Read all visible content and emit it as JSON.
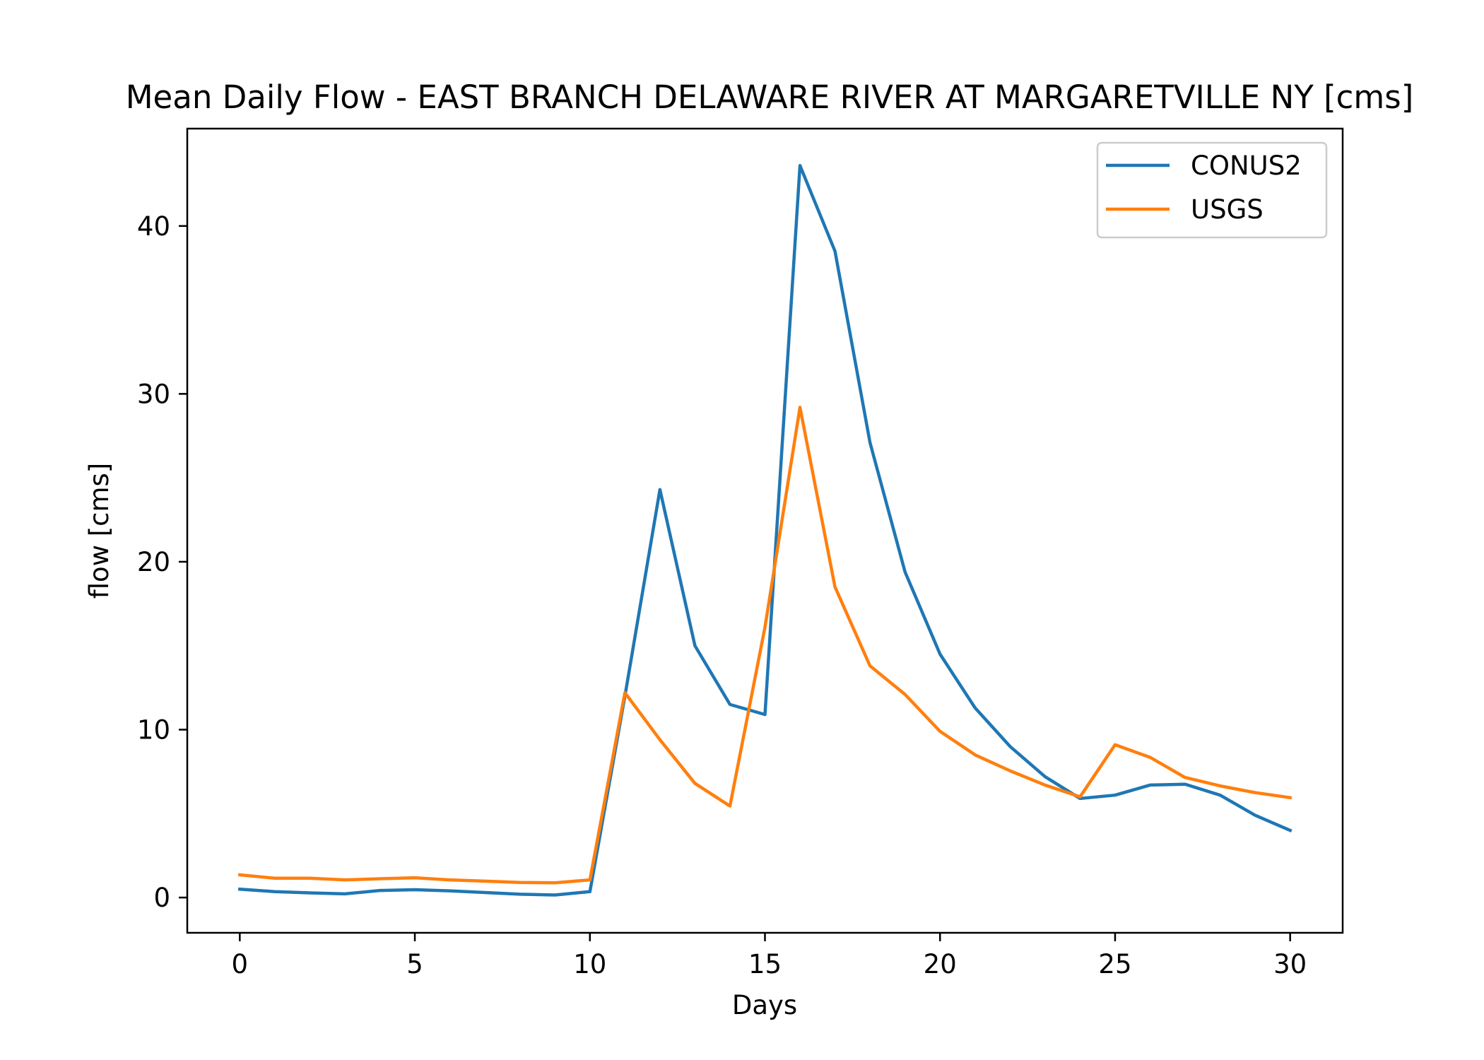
{
  "chart_data": {
    "type": "line",
    "title": "Mean Daily Flow - EAST BRANCH DELAWARE RIVER AT MARGARETVILLE NY [cms]",
    "xlabel": "Days",
    "ylabel": "flow [cms]",
    "xlim": [
      -1.5,
      31.5
    ],
    "ylim": [
      -2.1,
      45.8
    ],
    "xticks": [
      0,
      5,
      10,
      15,
      20,
      25,
      30
    ],
    "yticks": [
      0,
      10,
      20,
      30,
      40
    ],
    "grid": false,
    "legend_position": "top-right",
    "x": [
      0,
      1,
      2,
      3,
      4,
      5,
      6,
      7,
      8,
      9,
      10,
      11,
      12,
      13,
      14,
      15,
      16,
      17,
      18,
      19,
      20,
      21,
      22,
      23,
      24,
      25,
      26,
      27,
      28,
      29,
      30
    ],
    "series": [
      {
        "name": "CONUS2",
        "color": "#1f77b4",
        "values": [
          0.5,
          0.35,
          0.28,
          0.22,
          0.42,
          0.47,
          0.4,
          0.3,
          0.2,
          0.15,
          0.35,
          12.0,
          24.3,
          15.0,
          11.5,
          10.9,
          43.6,
          38.5,
          27.1,
          19.4,
          14.5,
          11.3,
          9.0,
          7.2,
          5.9,
          6.1,
          6.7,
          6.75,
          6.1,
          4.9,
          4.0
        ]
      },
      {
        "name": "USGS",
        "color": "#ff7f0e",
        "values": [
          1.35,
          1.15,
          1.15,
          1.05,
          1.12,
          1.18,
          1.05,
          0.98,
          0.9,
          0.88,
          1.05,
          12.2,
          9.4,
          6.8,
          5.45,
          16.1,
          29.2,
          18.5,
          13.8,
          12.1,
          9.9,
          8.5,
          7.55,
          6.7,
          6.0,
          9.1,
          8.35,
          7.15,
          6.65,
          6.25,
          5.95
        ]
      }
    ]
  }
}
